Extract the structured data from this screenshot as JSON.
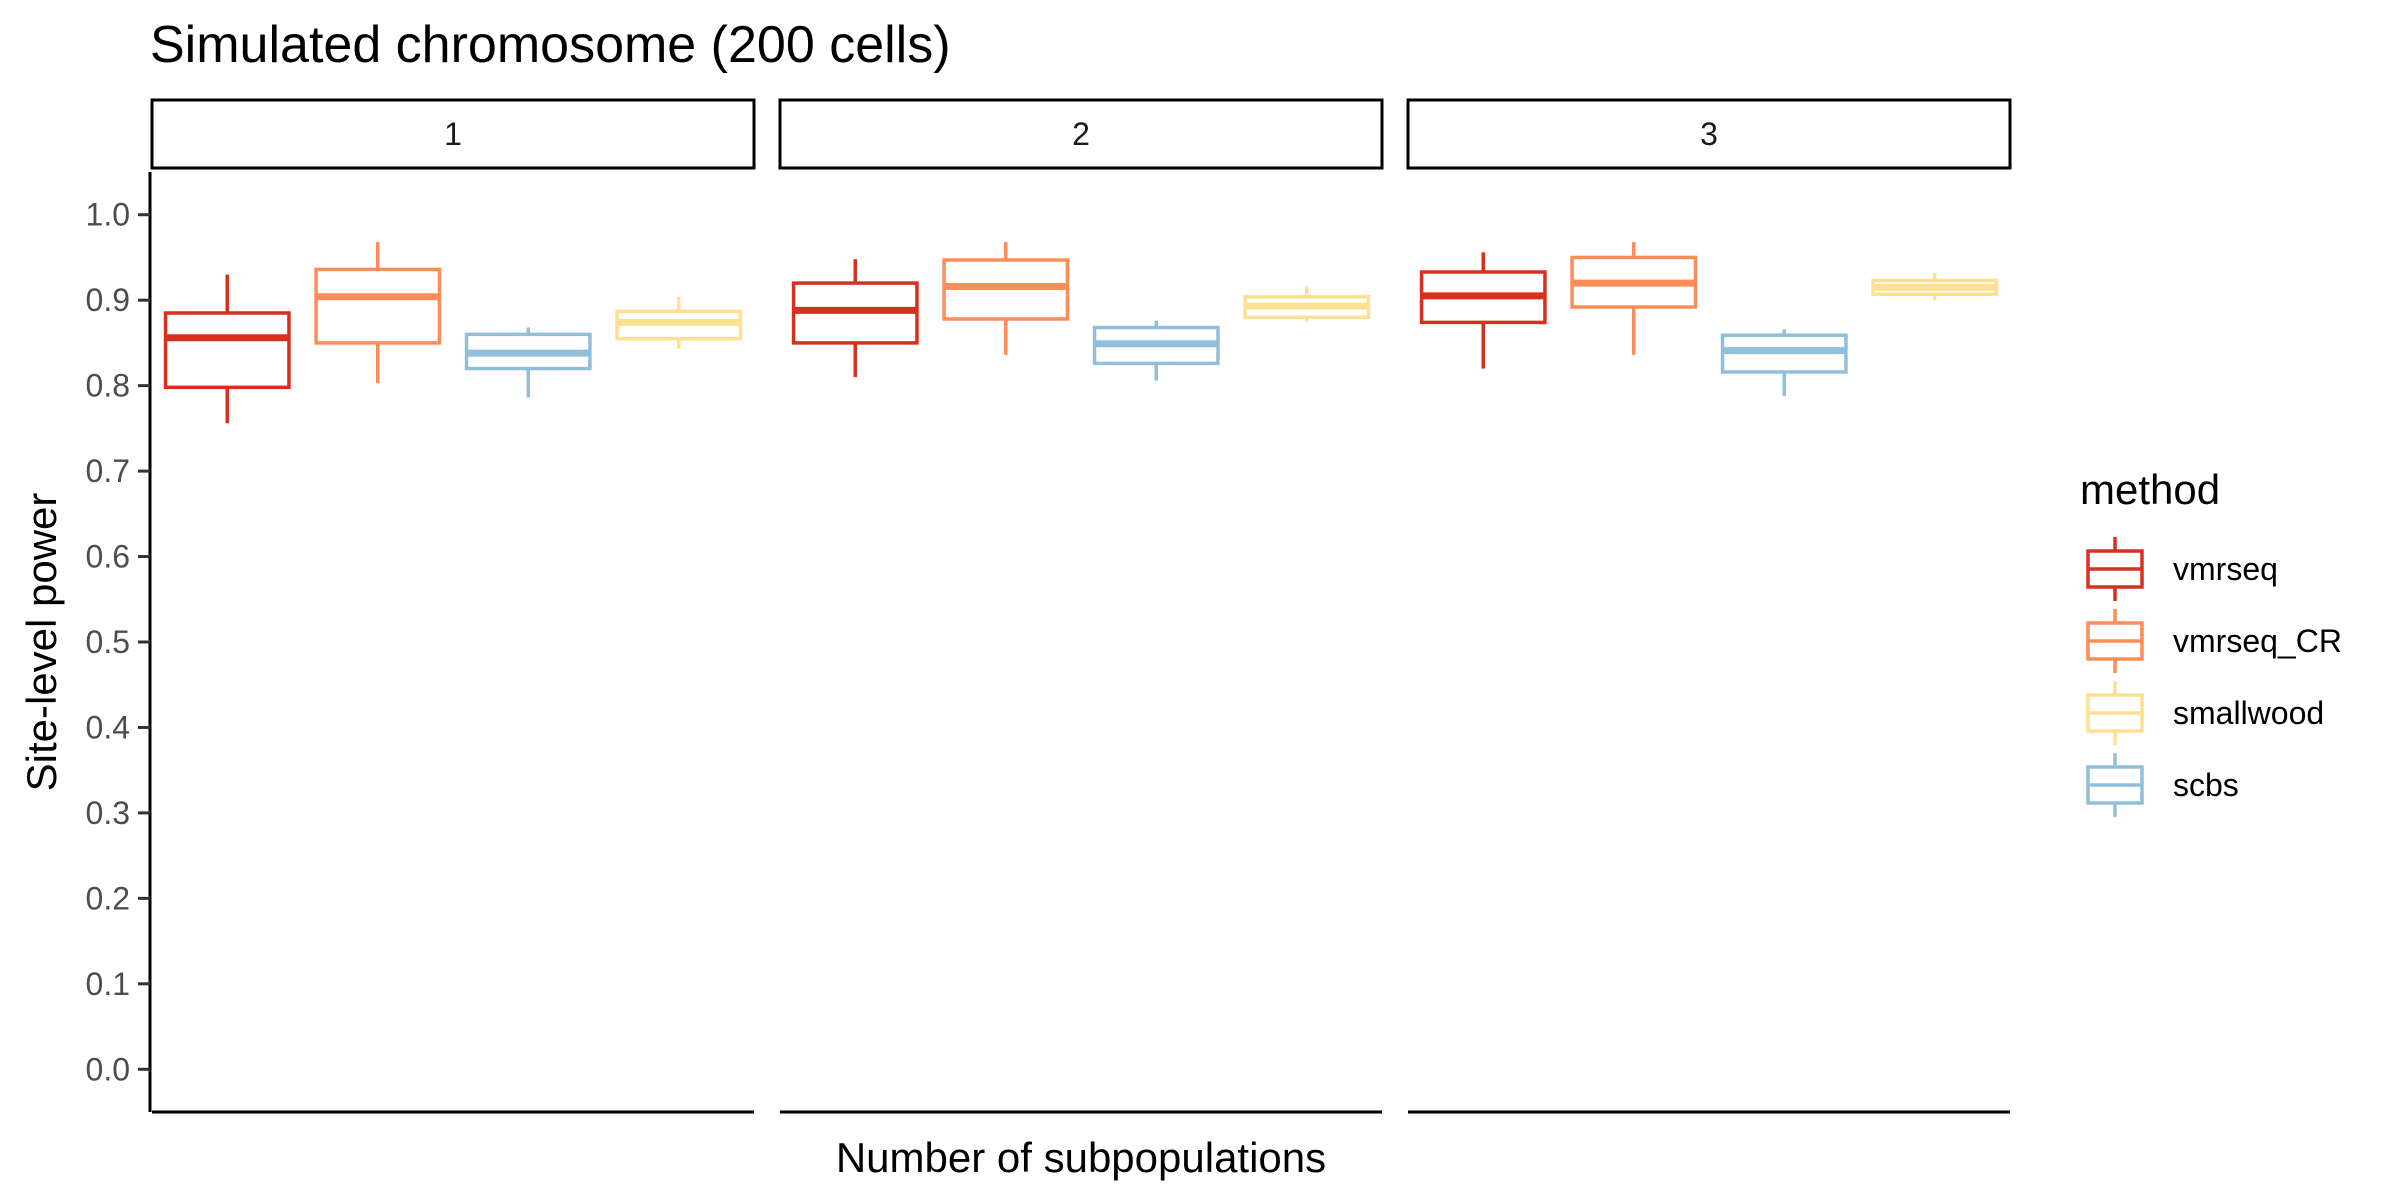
{
  "chart_data": {
    "type": "boxplot",
    "title": "Simulated chromosome (200 cells)",
    "xlabel": "Number of subpopulations",
    "ylabel": "Site-level power",
    "ylim": [
      -0.05,
      1.05
    ],
    "yticks": [
      "0.0",
      "0.1",
      "0.2",
      "0.3",
      "0.4",
      "0.5",
      "0.6",
      "0.7",
      "0.8",
      "0.9",
      "1.0"
    ],
    "grid": false,
    "legend": {
      "title": "method",
      "placement": "right",
      "entries": [
        {
          "name": "vmrseq",
          "color": "#d7301f"
        },
        {
          "name": "vmrseq_CR",
          "color": "#fc8d59"
        },
        {
          "name": "smallwood",
          "color": "#fee090"
        },
        {
          "name": "scbs",
          "color": "#91bfdb"
        }
      ]
    },
    "facets": [
      {
        "label": "1",
        "boxes": [
          {
            "method": "vmrseq",
            "whisker_low": 0.756,
            "q1": 0.798,
            "median": 0.856,
            "q3": 0.885,
            "whisker_high": 0.93
          },
          {
            "method": "vmrseq_CR",
            "whisker_low": 0.803,
            "q1": 0.85,
            "median": 0.904,
            "q3": 0.936,
            "whisker_high": 0.968
          },
          {
            "method": "scbs",
            "whisker_low": 0.786,
            "q1": 0.82,
            "median": 0.838,
            "q3": 0.86,
            "whisker_high": 0.868
          },
          {
            "method": "smallwood",
            "whisker_low": 0.843,
            "q1": 0.855,
            "median": 0.874,
            "q3": 0.887,
            "whisker_high": 0.904
          }
        ]
      },
      {
        "label": "2",
        "boxes": [
          {
            "method": "vmrseq",
            "whisker_low": 0.81,
            "q1": 0.85,
            "median": 0.888,
            "q3": 0.92,
            "whisker_high": 0.948
          },
          {
            "method": "vmrseq_CR",
            "whisker_low": 0.836,
            "q1": 0.878,
            "median": 0.916,
            "q3": 0.947,
            "whisker_high": 0.968
          },
          {
            "method": "scbs",
            "whisker_low": 0.806,
            "q1": 0.826,
            "median": 0.849,
            "q3": 0.868,
            "whisker_high": 0.876
          },
          {
            "method": "smallwood",
            "whisker_low": 0.875,
            "q1": 0.88,
            "median": 0.893,
            "q3": 0.904,
            "whisker_high": 0.916
          }
        ]
      },
      {
        "label": "3",
        "boxes": [
          {
            "method": "vmrseq",
            "whisker_low": 0.82,
            "q1": 0.874,
            "median": 0.905,
            "q3": 0.933,
            "whisker_high": 0.956
          },
          {
            "method": "vmrseq_CR",
            "whisker_low": 0.836,
            "q1": 0.892,
            "median": 0.92,
            "q3": 0.95,
            "whisker_high": 0.968
          },
          {
            "method": "scbs",
            "whisker_low": 0.788,
            "q1": 0.816,
            "median": 0.841,
            "q3": 0.859,
            "whisker_high": 0.866
          },
          {
            "method": "smallwood",
            "whisker_low": 0.9,
            "q1": 0.907,
            "median": 0.915,
            "q3": 0.923,
            "whisker_high": 0.932
          }
        ]
      }
    ]
  }
}
